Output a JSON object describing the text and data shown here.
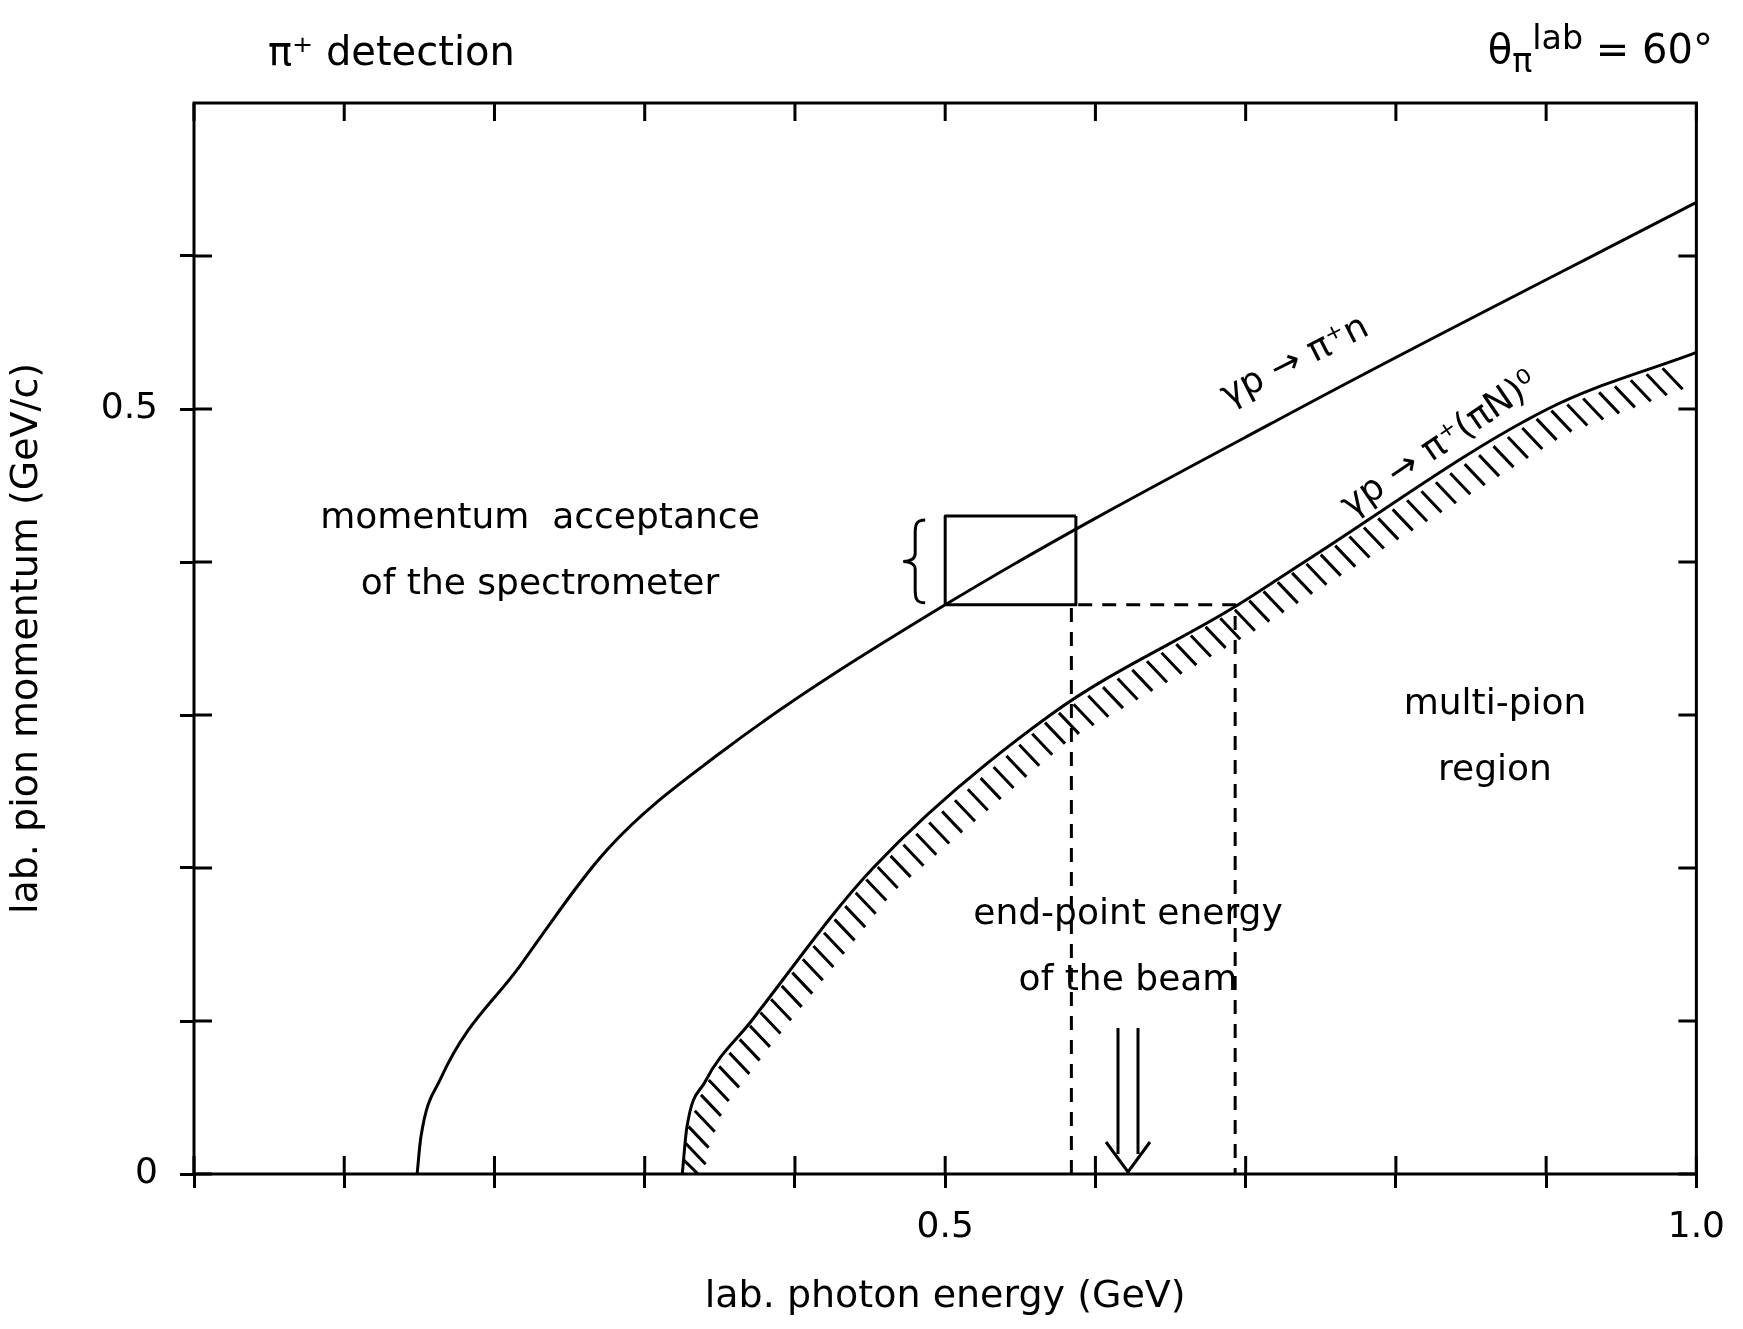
{
  "chart_data": {
    "type": "line",
    "title": "π⁺ detection",
    "subtitle": "θ$_{π}$$^{lab}$ = 60°",
    "xlabel": "lab. photon energy (GeV)",
    "ylabel": "lab. pion momentum (GeV/c)",
    "xlim": [
      0,
      1.0
    ],
    "ylim": [
      0,
      0.7
    ],
    "xticks": [
      {
        "value": 0,
        "label": null
      },
      {
        "value": 0.1,
        "label": null
      },
      {
        "value": 0.2,
        "label": null
      },
      {
        "value": 0.3,
        "label": null
      },
      {
        "value": 0.4,
        "label": null
      },
      {
        "value": 0.5,
        "label": "0.5"
      },
      {
        "value": 0.6,
        "label": null
      },
      {
        "value": 0.7,
        "label": null
      },
      {
        "value": 0.8,
        "label": null
      },
      {
        "value": 0.9,
        "label": null
      },
      {
        "value": 1.0,
        "label": "1.0"
      }
    ],
    "yticks": [
      {
        "value": 0,
        "label": "0"
      },
      {
        "value": 0.1,
        "label": null
      },
      {
        "value": 0.2,
        "label": null
      },
      {
        "value": 0.3,
        "label": null
      },
      {
        "value": 0.4,
        "label": null
      },
      {
        "value": 0.5,
        "label": "0.5"
      },
      {
        "value": 0.6,
        "label": null
      }
    ],
    "grid": false,
    "legend": false,
    "marker": "none",
    "series": [
      {
        "color": "#000000",
        "x": [
          0.1485,
          0.151,
          0.164,
          0.217,
          0.275,
          0.35,
          0.5,
          0.735,
          1.0
        ],
        "values": [
          0,
          0.024,
          0.062,
          0.136,
          0.212,
          0.275,
          0.372,
          0.5,
          0.635
        ]
      },
      {
        "color": "#000000",
        "x": [
          0.325,
          0.328,
          0.34,
          0.371,
          0.452,
          0.57,
          0.695,
          0.739,
          0.901,
          1.0
        ],
        "values": [
          0,
          0.03,
          0.06,
          0.1,
          0.2,
          0.3,
          0.372,
          0.4,
          0.5,
          0.537
        ]
      },
      {
        "color": "#000000",
        "x": [
          0.5,
          0.5,
          0.587
        ],
        "values": [
          0.372,
          0.43,
          0.43
        ]
      },
      {
        "color": "#000000",
        "x": [
          0.5,
          0.587,
          0.587
        ],
        "values": [
          0.372,
          0.372,
          0.43
        ]
      },
      {
        "color": "#000000",
        "line_style": "dashed",
        "x": [
          0.584,
          0.584,
          0.693,
          0.693
        ],
        "values": [
          0,
          0.372,
          0.372,
          0
        ]
      }
    ],
    "annotations": [
      "γp → π⁺n",
      "γp → π⁺(πN)⁰",
      "end-point energy\nof the beam",
      "multi-pion\nregion",
      "momentum  acceptance\nof the spectrometer"
    ]
  }
}
